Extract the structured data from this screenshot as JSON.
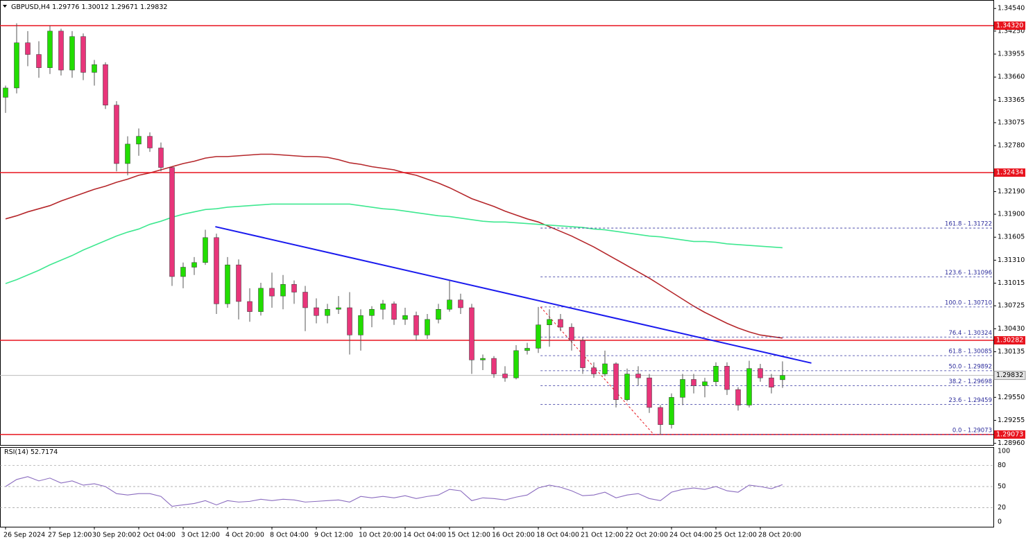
{
  "chart_data": [
    {
      "type": "candlestick",
      "title": "GBPUSD,H4",
      "categories": [
        "26 Sep 2024",
        null,
        null,
        null,
        "27 Sep 12:00",
        null,
        null,
        null,
        "30 Sep 20:00",
        null,
        null,
        null,
        "2 Oct 04:00",
        null,
        null,
        null,
        "3 Oct 12:00",
        null,
        null,
        null,
        "4 Oct 20:00",
        null,
        null,
        null,
        "8 Oct 04:00",
        null,
        null,
        null,
        "9 Oct 12:00",
        null,
        null,
        null,
        "10 Oct 20:00",
        null,
        null,
        null,
        "14 Oct 04:00",
        null,
        null,
        null,
        "15 Oct 12:00",
        null,
        null,
        null,
        "16 Oct 20:00",
        null,
        null,
        null,
        "18 Oct 04:00",
        null,
        null,
        null,
        "21 Oct 12:00",
        null,
        null,
        null,
        "22 Oct 20:00",
        null,
        null,
        null,
        "24 Oct 04:00",
        null,
        null,
        null,
        "25 Oct 12:00",
        null,
        null,
        null,
        "28 Oct 20:00",
        null,
        null
      ],
      "ohlc": [
        [
          1.334,
          1.3355,
          1.332,
          1.3352
        ],
        [
          1.3352,
          1.3435,
          1.3345,
          1.341
        ],
        [
          1.341,
          1.3425,
          1.338,
          1.3395
        ],
        [
          1.3395,
          1.3412,
          1.3365,
          1.3378
        ],
        [
          1.3378,
          1.3432,
          1.337,
          1.3425
        ],
        [
          1.3425,
          1.3428,
          1.3368,
          1.3375
        ],
        [
          1.3375,
          1.3425,
          1.3365,
          1.3418
        ],
        [
          1.3418,
          1.3422,
          1.3362,
          1.3372
        ],
        [
          1.3372,
          1.3388,
          1.3355,
          1.3382
        ],
        [
          1.3382,
          1.3385,
          1.3325,
          1.333
        ],
        [
          1.333,
          1.3335,
          1.3245,
          1.3255
        ],
        [
          1.3255,
          1.329,
          1.324,
          1.328
        ],
        [
          1.328,
          1.33,
          1.3265,
          1.329
        ],
        [
          1.329,
          1.3295,
          1.327,
          1.3275
        ],
        [
          1.3275,
          1.3282,
          1.3245,
          1.325
        ],
        [
          1.325,
          1.325,
          1.3098,
          1.311
        ],
        [
          1.311,
          1.3128,
          1.3095,
          1.3122
        ],
        [
          1.3122,
          1.3135,
          1.3112,
          1.3128
        ],
        [
          1.3128,
          1.317,
          1.3125,
          1.316
        ],
        [
          1.316,
          1.3165,
          1.3062,
          1.3075
        ],
        [
          1.3075,
          1.3135,
          1.307,
          1.3125
        ],
        [
          1.3125,
          1.3132,
          1.3055,
          1.3078
        ],
        [
          1.3078,
          1.3095,
          1.3052,
          1.3065
        ],
        [
          1.3065,
          1.3102,
          1.306,
          1.3095
        ],
        [
          1.3095,
          1.3115,
          1.307,
          1.3085
        ],
        [
          1.3085,
          1.3112,
          1.3068,
          1.31
        ],
        [
          1.31,
          1.3105,
          1.3075,
          1.309
        ],
        [
          1.309,
          1.3098,
          1.304,
          1.307
        ],
        [
          1.307,
          1.3082,
          1.305,
          1.306
        ],
        [
          1.306,
          1.3075,
          1.305,
          1.3068
        ],
        [
          1.3068,
          1.3085,
          1.3062,
          1.307
        ],
        [
          1.307,
          1.309,
          1.301,
          1.3035
        ],
        [
          1.3035,
          1.3068,
          1.3015,
          1.306
        ],
        [
          1.306,
          1.3072,
          1.3045,
          1.3068
        ],
        [
          1.3068,
          1.308,
          1.3055,
          1.3075
        ],
        [
          1.3075,
          1.3078,
          1.3048,
          1.3055
        ],
        [
          1.3055,
          1.307,
          1.3048,
          1.306
        ],
        [
          1.306,
          1.3065,
          1.3028,
          1.3035
        ],
        [
          1.3035,
          1.3062,
          1.303,
          1.3055
        ],
        [
          1.3055,
          1.3075,
          1.305,
          1.3068
        ],
        [
          1.3068,
          1.3105,
          1.3065,
          1.308
        ],
        [
          1.308,
          1.3088,
          1.3062,
          1.307
        ],
        [
          1.307,
          1.3075,
          1.2985,
          1.3003
        ],
        [
          1.3003,
          1.301,
          1.299,
          1.3005
        ],
        [
          1.3005,
          1.3008,
          1.298,
          1.2985
        ],
        [
          1.2985,
          1.2995,
          1.2975,
          1.298
        ],
        [
          1.298,
          1.3022,
          1.2978,
          1.3015
        ],
        [
          1.3015,
          1.3025,
          1.301,
          1.3018
        ],
        [
          1.3018,
          1.3071,
          1.3012,
          1.3048
        ],
        [
          1.3048,
          1.3068,
          1.302,
          1.3055
        ],
        [
          1.3055,
          1.3062,
          1.304,
          1.3045
        ],
        [
          1.3045,
          1.305,
          1.3015,
          1.3028
        ],
        [
          1.3028,
          1.3032,
          1.2985,
          1.2993
        ],
        [
          1.2993,
          1.3,
          1.298,
          1.2985
        ],
        [
          1.2985,
          1.3015,
          1.2982,
          1.2998
        ],
        [
          1.2998,
          1.3,
          1.2942,
          1.2952
        ],
        [
          1.2952,
          1.2992,
          1.295,
          1.2985
        ],
        [
          1.2985,
          1.2995,
          1.297,
          1.298
        ],
        [
          1.298,
          1.2985,
          1.2935,
          1.2942
        ],
        [
          1.2942,
          1.2945,
          1.2907,
          1.292
        ],
        [
          1.292,
          1.296,
          1.2915,
          1.2955
        ],
        [
          1.2955,
          1.2985,
          1.2945,
          1.2978
        ],
        [
          1.2978,
          1.2985,
          1.296,
          1.297
        ],
        [
          1.297,
          1.298,
          1.2955,
          1.2975
        ],
        [
          1.2975,
          1.3,
          1.297,
          1.2995
        ],
        [
          1.2995,
          1.3,
          1.2958,
          1.2965
        ],
        [
          1.2965,
          1.2968,
          1.2938,
          1.2945
        ],
        [
          1.2945,
          1.3002,
          1.2942,
          1.2992
        ],
        [
          1.2992,
          1.2998,
          1.2975,
          1.298
        ],
        [
          1.298,
          1.2985,
          1.296,
          1.2968
        ],
        [
          1.29776,
          1.30012,
          1.29671,
          1.29832
        ]
      ],
      "up_color": "#22dd00",
      "down_color": "#e8357a",
      "wick_color": "#555555",
      "ylim": [
        1.2893,
        1.3464
      ],
      "yticks": [
        {
          "value": 1.3454,
          "label": "1.34540"
        },
        {
          "value": 1.3425,
          "label": "1.34250"
        },
        1.33955,
        {
          "value": 1.3366,
          "label": "1.33660"
        },
        1.33365,
        1.33075,
        {
          "value": 1.3278,
          "label": "1.32780"
        },
        {
          "value": 1.3219,
          "label": "1.32190"
        },
        {
          "value": 1.319,
          "label": "1.31900"
        },
        1.31605,
        {
          "value": 1.3131,
          "label": "1.31310"
        },
        1.31015,
        1.30725,
        {
          "value": 1.3043,
          "label": "1.30430"
        },
        1.30135,
        {
          "value": 1.2955,
          "label": "1.29550"
        },
        1.29255,
        {
          "value": 1.2896,
          "label": "1.28960"
        }
      ],
      "series": [
        {
          "color": "#b5262a",
          "values": [
            1.3184,
            1.3188,
            1.3193,
            1.3197,
            1.3201,
            1.3207,
            1.3212,
            1.3217,
            1.3222,
            1.3226,
            1.3231,
            1.3235,
            1.324,
            1.3243,
            1.3247,
            1.3251,
            1.3255,
            1.3258,
            1.3262,
            1.3264,
            1.3264,
            1.3265,
            1.3266,
            1.3267,
            1.3267,
            1.3266,
            1.3265,
            1.3264,
            1.3264,
            1.3263,
            1.326,
            1.3256,
            1.3254,
            1.3251,
            1.3249,
            1.3247,
            1.3243,
            1.324,
            1.3235,
            1.323,
            1.3224,
            1.3217,
            1.321,
            1.3205,
            1.32,
            1.3194,
            1.3189,
            1.3184,
            1.318,
            1.3174,
            1.3168,
            1.3162,
            1.3155,
            1.3148,
            1.314,
            1.3132,
            1.3124,
            1.3116,
            1.3108,
            1.3099,
            1.309,
            1.3081,
            1.3072,
            1.3064,
            1.3057,
            1.305,
            1.3044,
            1.3039,
            1.3035,
            1.3033,
            1.3031
          ]
        },
        {
          "color": "#3ee890",
          "values": [
            1.3101,
            1.3106,
            1.3112,
            1.3118,
            1.3125,
            1.3131,
            1.3137,
            1.3144,
            1.315,
            1.3156,
            1.3162,
            1.3167,
            1.3171,
            1.3177,
            1.3181,
            1.3186,
            1.319,
            1.3193,
            1.3196,
            1.3197,
            1.3199,
            1.32,
            1.3201,
            1.3202,
            1.3203,
            1.3203,
            1.3203,
            1.3203,
            1.3203,
            1.3203,
            1.3203,
            1.3203,
            1.3201,
            1.3199,
            1.3197,
            1.3196,
            1.3194,
            1.3192,
            1.319,
            1.3188,
            1.3187,
            1.3185,
            1.3183,
            1.3181,
            1.318,
            1.318,
            1.3179,
            1.3178,
            1.3177,
            1.3176,
            1.3175,
            1.3174,
            1.3173,
            1.3171,
            1.317,
            1.3168,
            1.3166,
            1.3164,
            1.3162,
            1.3161,
            1.3159,
            1.3157,
            1.3155,
            1.3155,
            1.3154,
            1.3152,
            1.3151,
            1.315,
            1.3149,
            1.3148,
            1.3147
          ]
        }
      ],
      "hlines": {
        "color": "#e8141e",
        "levels": [
          {
            "value": 1.3432,
            "label": "1.34320"
          },
          1.32434,
          1.30282,
          1.29073
        ]
      },
      "trendline": {
        "color": "#1a1aee",
        "x": [
          18.9,
          72.6
        ],
        "values": [
          1.3174,
          1.2999
        ]
      },
      "fib": {
        "color": "#2c2c9c",
        "line": {
          "color": "#e8141e",
          "x": [
            48.2,
            58.4
          ],
          "values": [
            1.3071,
            1.29073
          ]
        },
        "levels": [
          {
            "value": 1.31722,
            "label": "161.8 - 1.31722"
          },
          {
            "value": 1.31096,
            "label": "123.6 - 1.31096"
          },
          {
            "value": 1.3071,
            "label": "100.0 - 1.30710"
          },
          {
            "value": 1.30324,
            "label": "76.4 - 1.30324"
          },
          {
            "value": 1.30085,
            "label": "61.8 - 1.30085"
          },
          {
            "value": 1.29892,
            "label": "50.0 - 1.29892"
          },
          {
            "value": 1.29698,
            "label": "38.2 - 1.29698"
          },
          {
            "value": 1.29459,
            "label": "23.6 - 1.29459"
          },
          {
            "value": 1.29073,
            "label": "0.0 - 1.29073"
          }
        ]
      }
    },
    {
      "type": "line",
      "title": "RSI(14)",
      "color": "#8a6bbf",
      "values": [
        50,
        60,
        64,
        58,
        62,
        55,
        58,
        52,
        54,
        50,
        40,
        38,
        40,
        40,
        36,
        22,
        24,
        26,
        30,
        24,
        30,
        28,
        29,
        32,
        30,
        32,
        31,
        28,
        29,
        30,
        31,
        28,
        36,
        34,
        36,
        34,
        37,
        33,
        36,
        38,
        46,
        44,
        30,
        34,
        33,
        31,
        35,
        38,
        48,
        52,
        49,
        44,
        37,
        38,
        42,
        34,
        38,
        40,
        33,
        30,
        42,
        46,
        48,
        46,
        50,
        44,
        42,
        52,
        50,
        47,
        52.7174
      ],
      "ylim": [
        -7,
        106
      ],
      "yticks": [
        0,
        20,
        50,
        80,
        100
      ]
    }
  ]
}
